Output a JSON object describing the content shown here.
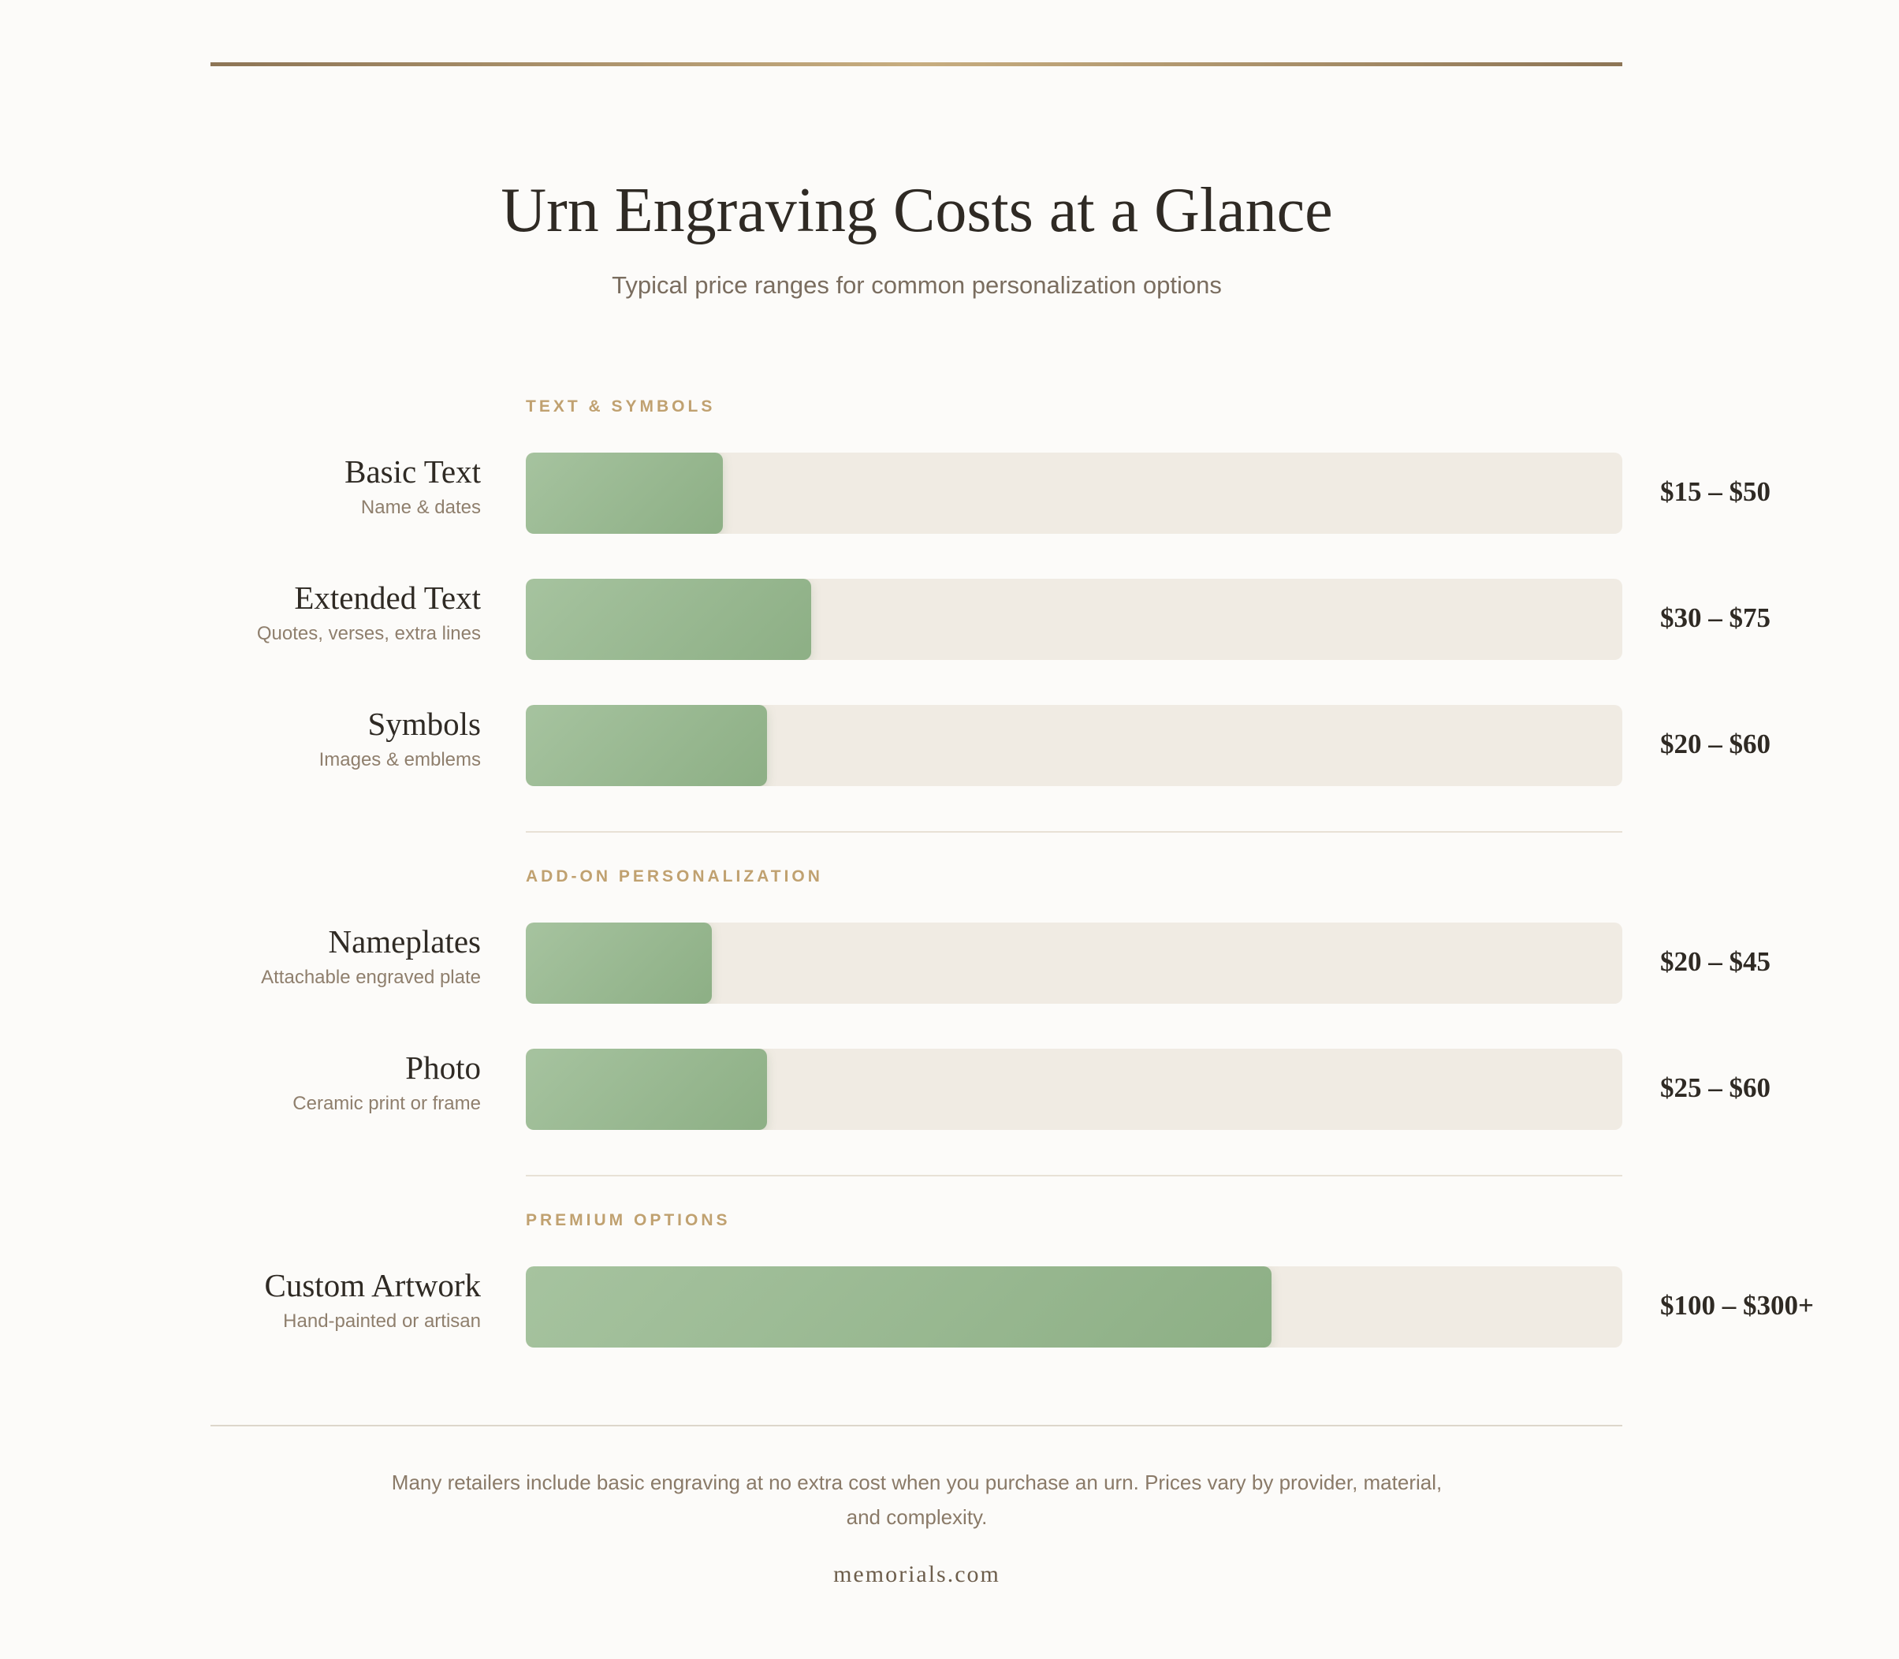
{
  "header": {
    "title": "Urn Engraving Costs at a Glance",
    "subtitle": "Typical price ranges for common personalization options"
  },
  "chart_data": {
    "type": "bar",
    "orientation": "horizontal",
    "fill_color": "#97b98f",
    "track_color": "#f0ebe3",
    "sections": [
      {
        "label": "TEXT & SYMBOLS",
        "items": [
          {
            "name": "Basic Text",
            "desc": "Name & dates",
            "price": "$15 – $50",
            "fill_pct": 18
          },
          {
            "name": "Extended Text",
            "desc": "Quotes, verses, extra lines",
            "price": "$30 – $75",
            "fill_pct": 26
          },
          {
            "name": "Symbols",
            "desc": "Images & emblems",
            "price": "$20 – $60",
            "fill_pct": 22
          }
        ]
      },
      {
        "label": "ADD-ON PERSONALIZATION",
        "items": [
          {
            "name": "Nameplates",
            "desc": "Attachable engraved plate",
            "price": "$20 – $45",
            "fill_pct": 17
          },
          {
            "name": "Photo",
            "desc": "Ceramic print or frame",
            "price": "$25 – $60",
            "fill_pct": 22
          }
        ]
      },
      {
        "label": "PREMIUM OPTIONS",
        "items": [
          {
            "name": "Custom Artwork",
            "desc": "Hand-painted or artisan",
            "price": "$100 – $300+",
            "fill_pct": 68
          }
        ]
      }
    ]
  },
  "footer": {
    "note": "Many retailers include basic engraving at no extra cost when you purchase an urn. Prices vary by provider, material, and complexity.",
    "brand": "memorials.com"
  }
}
